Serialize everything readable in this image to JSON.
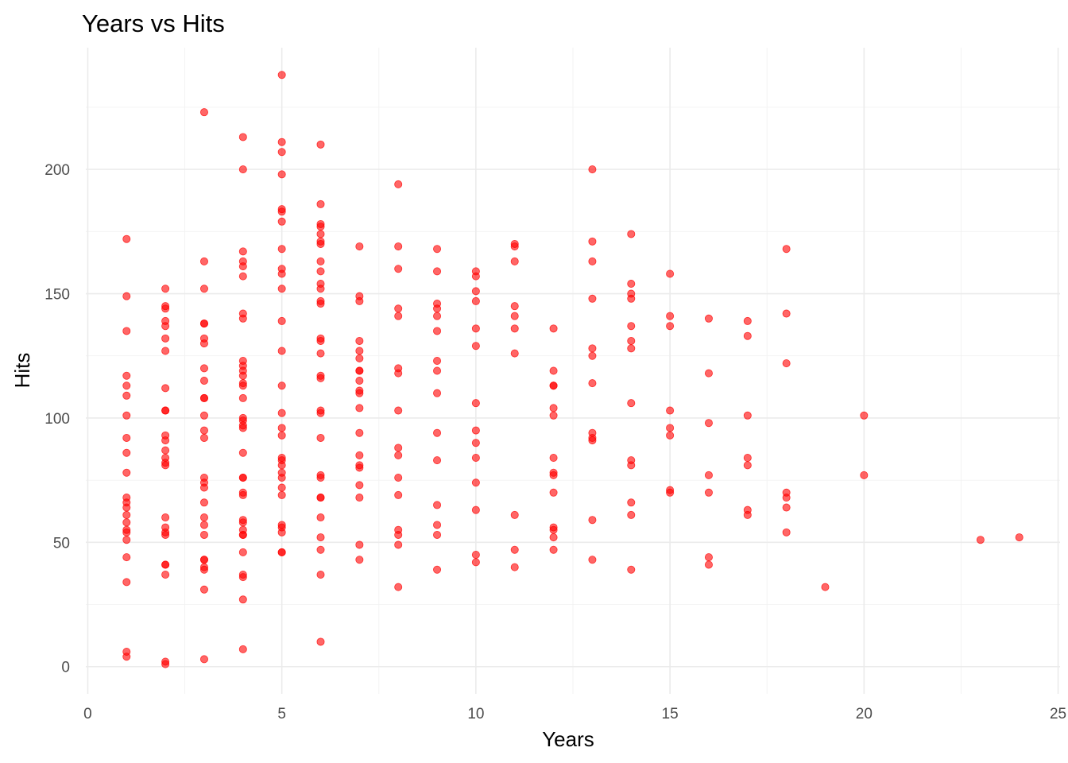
{
  "chart_data": {
    "type": "scatter",
    "title": "Years vs Hits",
    "xlabel": "Years",
    "ylabel": "Hits",
    "xlim": [
      -0.05,
      25.05
    ],
    "ylim": [
      -10.95,
      248.95
    ],
    "x_ticks": [
      0,
      5,
      10,
      15,
      20,
      25
    ],
    "y_ticks": [
      0,
      50,
      100,
      150,
      200
    ],
    "grid": true,
    "legend": "none",
    "point_color": "#ff0000",
    "point_opacity": 0.6,
    "series": [
      {
        "points": [
          [
            1,
            172
          ],
          [
            1,
            149
          ],
          [
            1,
            135
          ],
          [
            1,
            117
          ],
          [
            1,
            113
          ],
          [
            1,
            109
          ],
          [
            1,
            101
          ],
          [
            1,
            92
          ],
          [
            1,
            86
          ],
          [
            1,
            78
          ],
          [
            1,
            68
          ],
          [
            1,
            66
          ],
          [
            1,
            64
          ],
          [
            1,
            61
          ],
          [
            1,
            58
          ],
          [
            1,
            55
          ],
          [
            1,
            54
          ],
          [
            1,
            51
          ],
          [
            1,
            44
          ],
          [
            1,
            34
          ],
          [
            1,
            6
          ],
          [
            1,
            4
          ],
          [
            2,
            152
          ],
          [
            2,
            145
          ],
          [
            2,
            144
          ],
          [
            2,
            139
          ],
          [
            2,
            137
          ],
          [
            2,
            132
          ],
          [
            2,
            127
          ],
          [
            2,
            112
          ],
          [
            2,
            103
          ],
          [
            2,
            103
          ],
          [
            2,
            93
          ],
          [
            2,
            91
          ],
          [
            2,
            87
          ],
          [
            2,
            84
          ],
          [
            2,
            82
          ],
          [
            2,
            81
          ],
          [
            2,
            60
          ],
          [
            2,
            56
          ],
          [
            2,
            54
          ],
          [
            2,
            53
          ],
          [
            2,
            41
          ],
          [
            2,
            41
          ],
          [
            2,
            37
          ],
          [
            2,
            2
          ],
          [
            2,
            1
          ],
          [
            3,
            223
          ],
          [
            3,
            163
          ],
          [
            3,
            152
          ],
          [
            3,
            138
          ],
          [
            3,
            138
          ],
          [
            3,
            132
          ],
          [
            3,
            130
          ],
          [
            3,
            120
          ],
          [
            3,
            115
          ],
          [
            3,
            108
          ],
          [
            3,
            108
          ],
          [
            3,
            101
          ],
          [
            3,
            95
          ],
          [
            3,
            92
          ],
          [
            3,
            76
          ],
          [
            3,
            74
          ],
          [
            3,
            72
          ],
          [
            3,
            66
          ],
          [
            3,
            60
          ],
          [
            3,
            57
          ],
          [
            3,
            53
          ],
          [
            3,
            43
          ],
          [
            3,
            43
          ],
          [
            3,
            40
          ],
          [
            3,
            39
          ],
          [
            3,
            31
          ],
          [
            3,
            3
          ],
          [
            4,
            213
          ],
          [
            4,
            200
          ],
          [
            4,
            167
          ],
          [
            4,
            163
          ],
          [
            4,
            161
          ],
          [
            4,
            157
          ],
          [
            4,
            142
          ],
          [
            4,
            140
          ],
          [
            4,
            123
          ],
          [
            4,
            121
          ],
          [
            4,
            119
          ],
          [
            4,
            117
          ],
          [
            4,
            114
          ],
          [
            4,
            113
          ],
          [
            4,
            108
          ],
          [
            4,
            100
          ],
          [
            4,
            99
          ],
          [
            4,
            97
          ],
          [
            4,
            96
          ],
          [
            4,
            86
          ],
          [
            4,
            76
          ],
          [
            4,
            76
          ],
          [
            4,
            70
          ],
          [
            4,
            69
          ],
          [
            4,
            59
          ],
          [
            4,
            58
          ],
          [
            4,
            55
          ],
          [
            4,
            53
          ],
          [
            4,
            53
          ],
          [
            4,
            46
          ],
          [
            4,
            37
          ],
          [
            4,
            36
          ],
          [
            4,
            27
          ],
          [
            4,
            7
          ],
          [
            5,
            238
          ],
          [
            5,
            211
          ],
          [
            5,
            207
          ],
          [
            5,
            198
          ],
          [
            5,
            184
          ],
          [
            5,
            183
          ],
          [
            5,
            179
          ],
          [
            5,
            168
          ],
          [
            5,
            160
          ],
          [
            5,
            158
          ],
          [
            5,
            152
          ],
          [
            5,
            139
          ],
          [
            5,
            127
          ],
          [
            5,
            113
          ],
          [
            5,
            102
          ],
          [
            5,
            96
          ],
          [
            5,
            93
          ],
          [
            5,
            84
          ],
          [
            5,
            83
          ],
          [
            5,
            81
          ],
          [
            5,
            78
          ],
          [
            5,
            76
          ],
          [
            5,
            72
          ],
          [
            5,
            69
          ],
          [
            5,
            57
          ],
          [
            5,
            56
          ],
          [
            5,
            54
          ],
          [
            5,
            46
          ],
          [
            5,
            46
          ],
          [
            6,
            210
          ],
          [
            6,
            186
          ],
          [
            6,
            178
          ],
          [
            6,
            177
          ],
          [
            6,
            174
          ],
          [
            6,
            171
          ],
          [
            6,
            170
          ],
          [
            6,
            163
          ],
          [
            6,
            159
          ],
          [
            6,
            154
          ],
          [
            6,
            152
          ],
          [
            6,
            147
          ],
          [
            6,
            146
          ],
          [
            6,
            132
          ],
          [
            6,
            131
          ],
          [
            6,
            126
          ],
          [
            6,
            117
          ],
          [
            6,
            116
          ],
          [
            6,
            103
          ],
          [
            6,
            102
          ],
          [
            6,
            92
          ],
          [
            6,
            77
          ],
          [
            6,
            76
          ],
          [
            6,
            68
          ],
          [
            6,
            68
          ],
          [
            6,
            60
          ],
          [
            6,
            52
          ],
          [
            6,
            47
          ],
          [
            6,
            37
          ],
          [
            6,
            10
          ],
          [
            7,
            169
          ],
          [
            7,
            149
          ],
          [
            7,
            147
          ],
          [
            7,
            131
          ],
          [
            7,
            127
          ],
          [
            7,
            124
          ],
          [
            7,
            119
          ],
          [
            7,
            119
          ],
          [
            7,
            115
          ],
          [
            7,
            111
          ],
          [
            7,
            110
          ],
          [
            7,
            104
          ],
          [
            7,
            94
          ],
          [
            7,
            85
          ],
          [
            7,
            81
          ],
          [
            7,
            80
          ],
          [
            7,
            73
          ],
          [
            7,
            68
          ],
          [
            7,
            49
          ],
          [
            7,
            43
          ],
          [
            8,
            194
          ],
          [
            8,
            169
          ],
          [
            8,
            160
          ],
          [
            8,
            144
          ],
          [
            8,
            141
          ],
          [
            8,
            120
          ],
          [
            8,
            118
          ],
          [
            8,
            103
          ],
          [
            8,
            88
          ],
          [
            8,
            85
          ],
          [
            8,
            76
          ],
          [
            8,
            69
          ],
          [
            8,
            55
          ],
          [
            8,
            53
          ],
          [
            8,
            49
          ],
          [
            8,
            32
          ],
          [
            9,
            168
          ],
          [
            9,
            159
          ],
          [
            9,
            146
          ],
          [
            9,
            144
          ],
          [
            9,
            141
          ],
          [
            9,
            135
          ],
          [
            9,
            123
          ],
          [
            9,
            119
          ],
          [
            9,
            110
          ],
          [
            9,
            94
          ],
          [
            9,
            83
          ],
          [
            9,
            65
          ],
          [
            9,
            57
          ],
          [
            9,
            53
          ],
          [
            9,
            39
          ],
          [
            10,
            159
          ],
          [
            10,
            157
          ],
          [
            10,
            151
          ],
          [
            10,
            147
          ],
          [
            10,
            136
          ],
          [
            10,
            129
          ],
          [
            10,
            106
          ],
          [
            10,
            95
          ],
          [
            10,
            90
          ],
          [
            10,
            84
          ],
          [
            10,
            74
          ],
          [
            10,
            63
          ],
          [
            10,
            45
          ],
          [
            10,
            42
          ],
          [
            11,
            170
          ],
          [
            11,
            169
          ],
          [
            11,
            163
          ],
          [
            11,
            145
          ],
          [
            11,
            141
          ],
          [
            11,
            136
          ],
          [
            11,
            126
          ],
          [
            11,
            61
          ],
          [
            11,
            47
          ],
          [
            11,
            40
          ],
          [
            12,
            136
          ],
          [
            12,
            119
          ],
          [
            12,
            113
          ],
          [
            12,
            113
          ],
          [
            12,
            104
          ],
          [
            12,
            101
          ],
          [
            12,
            84
          ],
          [
            12,
            78
          ],
          [
            12,
            77
          ],
          [
            12,
            70
          ],
          [
            12,
            56
          ],
          [
            12,
            55
          ],
          [
            12,
            52
          ],
          [
            12,
            47
          ],
          [
            13,
            200
          ],
          [
            13,
            171
          ],
          [
            13,
            163
          ],
          [
            13,
            148
          ],
          [
            13,
            128
          ],
          [
            13,
            125
          ],
          [
            13,
            114
          ],
          [
            13,
            94
          ],
          [
            13,
            92
          ],
          [
            13,
            91
          ],
          [
            13,
            59
          ],
          [
            13,
            43
          ],
          [
            14,
            174
          ],
          [
            14,
            154
          ],
          [
            14,
            150
          ],
          [
            14,
            148
          ],
          [
            14,
            137
          ],
          [
            14,
            131
          ],
          [
            14,
            128
          ],
          [
            14,
            106
          ],
          [
            14,
            83
          ],
          [
            14,
            81
          ],
          [
            14,
            66
          ],
          [
            14,
            61
          ],
          [
            14,
            39
          ],
          [
            15,
            158
          ],
          [
            15,
            141
          ],
          [
            15,
            137
          ],
          [
            15,
            103
          ],
          [
            15,
            96
          ],
          [
            15,
            93
          ],
          [
            15,
            71
          ],
          [
            15,
            70
          ],
          [
            16,
            140
          ],
          [
            16,
            118
          ],
          [
            16,
            98
          ],
          [
            16,
            77
          ],
          [
            16,
            70
          ],
          [
            16,
            44
          ],
          [
            16,
            41
          ],
          [
            17,
            139
          ],
          [
            17,
            133
          ],
          [
            17,
            101
          ],
          [
            17,
            84
          ],
          [
            17,
            81
          ],
          [
            17,
            63
          ],
          [
            17,
            61
          ],
          [
            18,
            168
          ],
          [
            18,
            142
          ],
          [
            18,
            122
          ],
          [
            18,
            70
          ],
          [
            18,
            68
          ],
          [
            18,
            64
          ],
          [
            18,
            54
          ],
          [
            19,
            32
          ],
          [
            20,
            101
          ],
          [
            20,
            77
          ],
          [
            23,
            51
          ],
          [
            24,
            52
          ]
        ]
      }
    ]
  }
}
